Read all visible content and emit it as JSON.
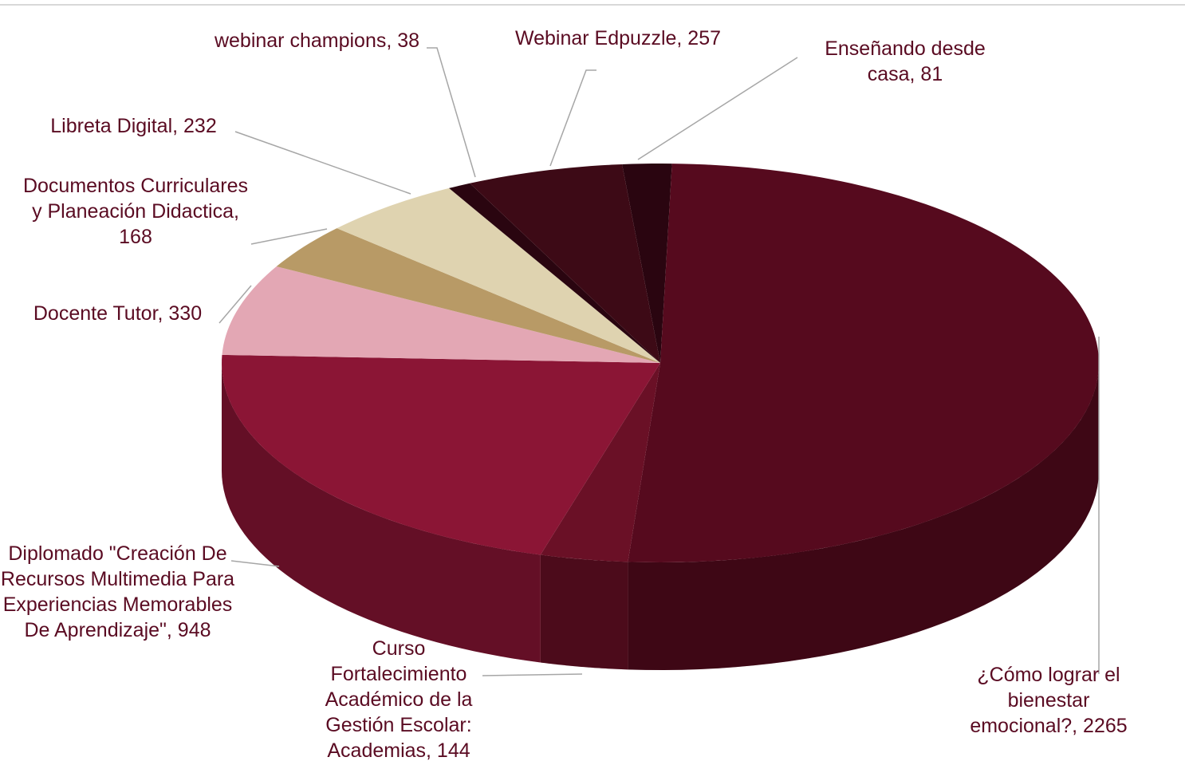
{
  "chart_data": {
    "type": "pie3d",
    "values": [
      81,
      2265,
      144,
      948,
      330,
      168,
      232,
      38,
      257
    ],
    "value_labels": [
      "Enseñando desde casa, 81",
      "¿Cómo lograr el bienestar emocional?, 2265",
      "Curso Fortalecimiento Académico de la Gestión Escolar: Academias, 144",
      "Diplomado \"Creación De Recursos Multimedia Para Experiencias Memorables De Aprendizaje\", 948",
      "Docente Tutor, 330",
      "Documentos Curriculares y Planeación Didactica, 168",
      "Libreta Digital, 232",
      "webinar champions, 38",
      "Webinar Edpuzzle, 257"
    ],
    "colors": [
      "#2a0510",
      "#560a1e",
      "#6a1026",
      "#8b1535",
      "#e3a7b4",
      "#b89a66",
      "#dfd3b0",
      "#2a0510",
      "#3d0a16"
    ]
  }
}
